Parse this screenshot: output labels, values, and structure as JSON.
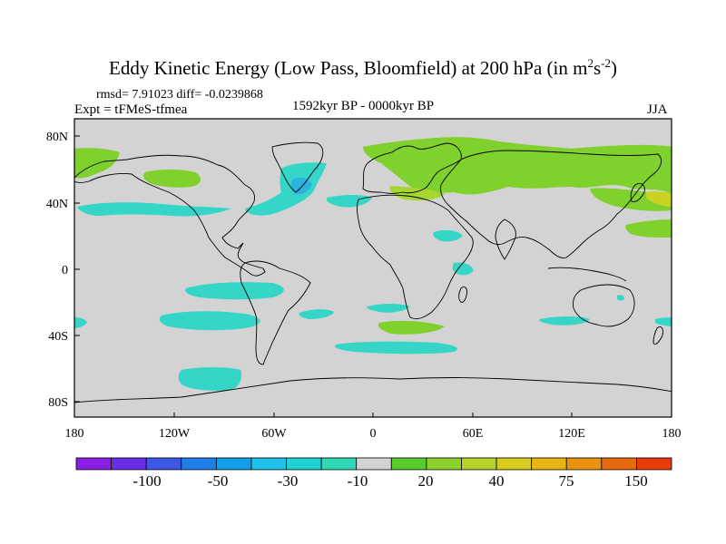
{
  "title": {
    "main": "Eddy Kinetic Energy (Low Pass, Bloomfield) at 200 hPa (in m",
    "sup1": "2",
    "mid": "s",
    "sup2": "-2",
    "end": ")"
  },
  "stats": "rmsd= 7.91023 diff= -0.0239868",
  "experiment": "Expt = tFMeS-tfmea",
  "period": "1592kyr BP - 0000kyr BP",
  "season": "JJA",
  "colors": {
    "land_bg": "#d3d3d3",
    "green": "#80d12d",
    "light_green": "#a6d630",
    "yellow_green": "#c9d21f",
    "cyan": "#35d6c8",
    "blue": "#2bb3e0"
  },
  "map": {
    "lat_ticks": [
      "80N",
      "40N",
      "0",
      "40S",
      "80S"
    ],
    "lon_ticks": [
      "180",
      "120W",
      "60W",
      "0",
      "60E",
      "120E",
      "180"
    ]
  },
  "colorbar": {
    "colors": [
      "#8b1ee3",
      "#6a2de6",
      "#3e58e6",
      "#1f7ee8",
      "#129fe8",
      "#1ec1e8",
      "#1fd3d3",
      "#2fd9b6",
      "#d3d3d3",
      "#59cc2d",
      "#8cd02e",
      "#b6d22a",
      "#d8cc1e",
      "#e8b414",
      "#e8920f",
      "#e86a0e",
      "#e83c0a"
    ],
    "labels": [
      "-100",
      "-50",
      "-30",
      "-10",
      "20",
      "40",
      "75",
      "150"
    ]
  }
}
